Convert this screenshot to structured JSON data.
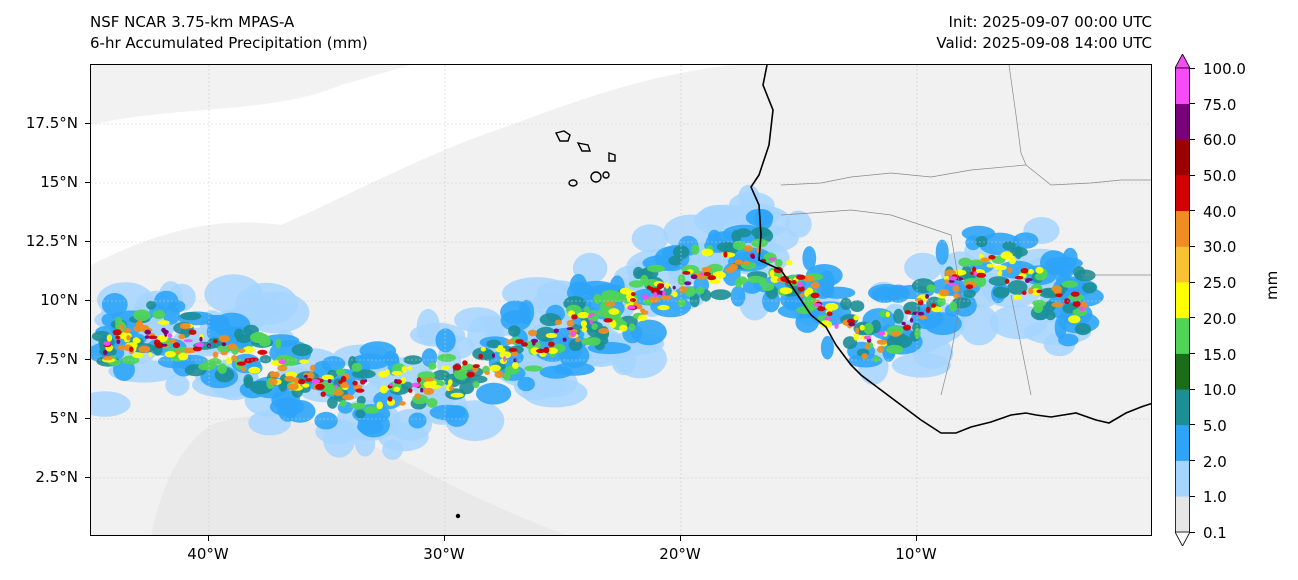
{
  "header": {
    "model": "NSF NCAR 3.75-km MPAS-A",
    "field": "6-hr Accumulated Precipitation (mm)",
    "init": "Init: 2025-09-07 00:00 UTC",
    "valid": "Valid: 2025-09-08 14:00 UTC"
  },
  "map": {
    "lon_range": [
      -45,
      0
    ],
    "lat_range": [
      0,
      20
    ],
    "x_ticks": [
      {
        "lon": -40,
        "label": "40°W"
      },
      {
        "lon": -30,
        "label": "30°W"
      },
      {
        "lon": -20,
        "label": "20°W"
      },
      {
        "lon": -10,
        "label": "10°W"
      }
    ],
    "y_ticks": [
      {
        "lat": 2.5,
        "label": "2.5°N"
      },
      {
        "lat": 5,
        "label": "5°N"
      },
      {
        "lat": 7.5,
        "label": "7.5°N"
      },
      {
        "lat": 10,
        "label": "10°N"
      },
      {
        "lat": 12.5,
        "label": "12.5°N"
      },
      {
        "lat": 15,
        "label": "15°N"
      },
      {
        "lat": 17.5,
        "label": "17.5°N"
      }
    ],
    "gridlines": true
  },
  "colorbar": {
    "units": "mm",
    "levels": [
      "0.1",
      "1.0",
      "2.0",
      "5.0",
      "10.0",
      "15.0",
      "20.0",
      "25.0",
      "30.0",
      "40.0",
      "50.0",
      "60.0",
      "75.0",
      "100.0"
    ],
    "colors": [
      "#e6e6e6",
      "#a5d5ff",
      "#2ea4f8",
      "#1c8e96",
      "#1a6e1a",
      "#4fd457",
      "#ffff00",
      "#f8c232",
      "#ef8c22",
      "#d20000",
      "#9c0000",
      "#7a007a",
      "#f64bf6"
    ],
    "extend": "both"
  }
}
